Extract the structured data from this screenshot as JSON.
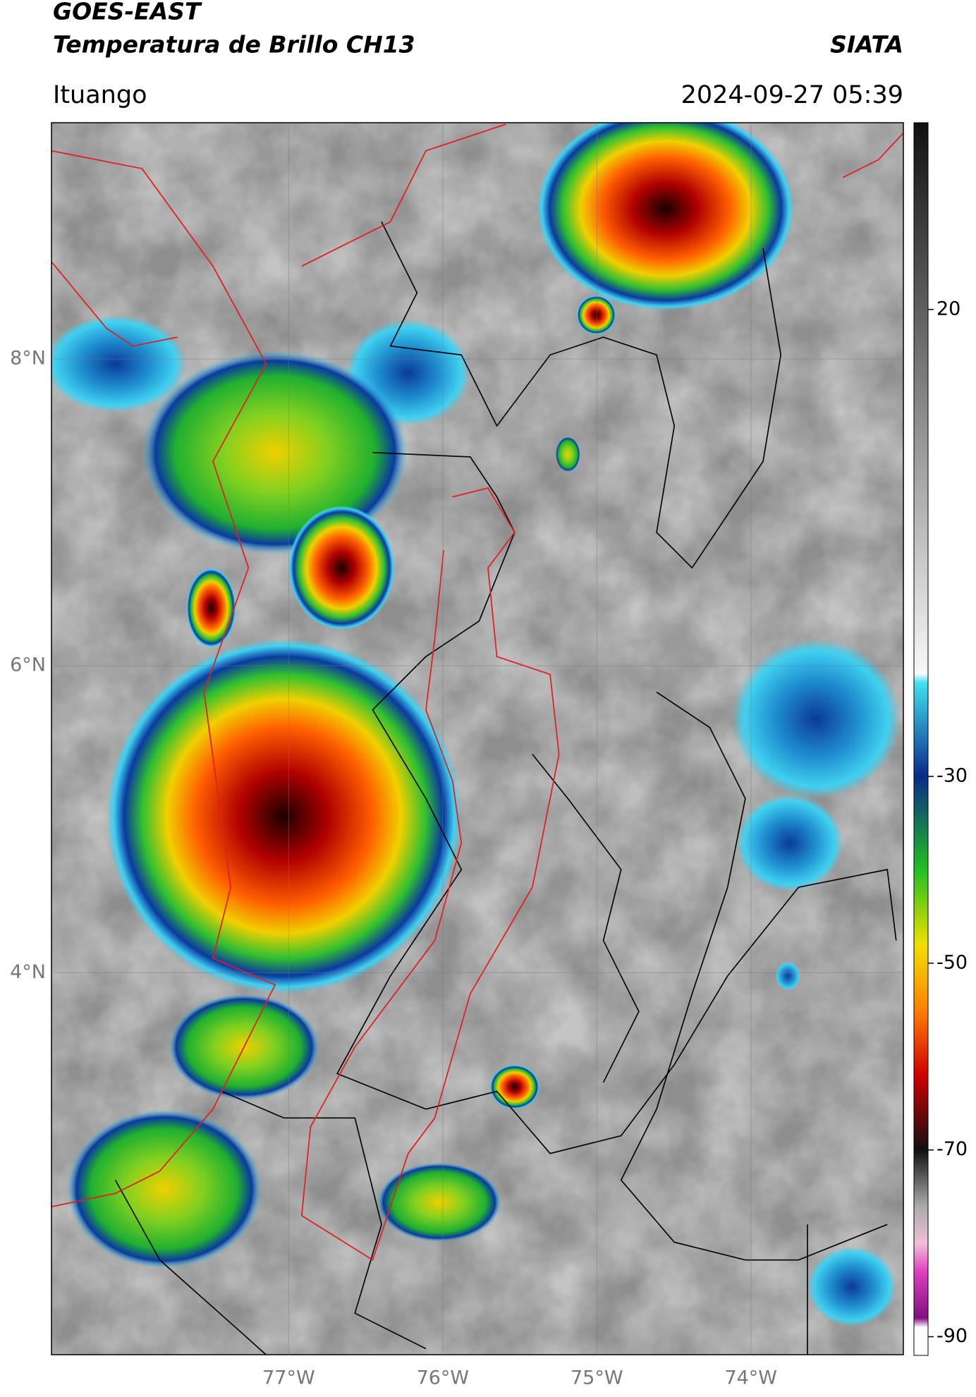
{
  "chart_data": {
    "type": "map",
    "title": "GOES-EAST",
    "subtitle": "Temperatura de Brillo CH13",
    "source": "SIATA",
    "region": "Ituango",
    "datetime": "2024-09-27 05:39",
    "xlim": [
      -78.54,
      -73.01
    ],
    "ylim": [
      1.51,
      9.54
    ],
    "xticks": [
      {
        "value": -77,
        "label": "77°W"
      },
      {
        "value": -76,
        "label": "76°W"
      },
      {
        "value": -75,
        "label": "75°W"
      },
      {
        "value": -74,
        "label": "74°W"
      }
    ],
    "yticks": [
      {
        "value": 8,
        "label": "8°N"
      },
      {
        "value": 6,
        "label": "6°N"
      },
      {
        "value": 4,
        "label": "4°N"
      }
    ],
    "grid": true,
    "colorbar": {
      "lim": [
        -92,
        40
      ],
      "ticks": [
        20,
        -30,
        -50,
        -70,
        -90
      ],
      "colormap": [
        [
          40,
          "#111111"
        ],
        [
          -19,
          "#f8f8f8"
        ],
        [
          -20,
          "#40e0f0"
        ],
        [
          -30,
          "#0a2a8a"
        ],
        [
          -40,
          "#20c020"
        ],
        [
          -48,
          "#f0e000"
        ],
        [
          -55,
          "#ff8000"
        ],
        [
          -62,
          "#d00000"
        ],
        [
          -70,
          "#111111"
        ],
        [
          -76,
          "#aaaaaa"
        ],
        [
          -80,
          "#f0c0d8"
        ],
        [
          -83,
          "#e040c0"
        ],
        [
          -88,
          "#801080"
        ],
        [
          -89,
          "#ffffff"
        ],
        [
          -92,
          "#ffffff"
        ]
      ]
    }
  }
}
